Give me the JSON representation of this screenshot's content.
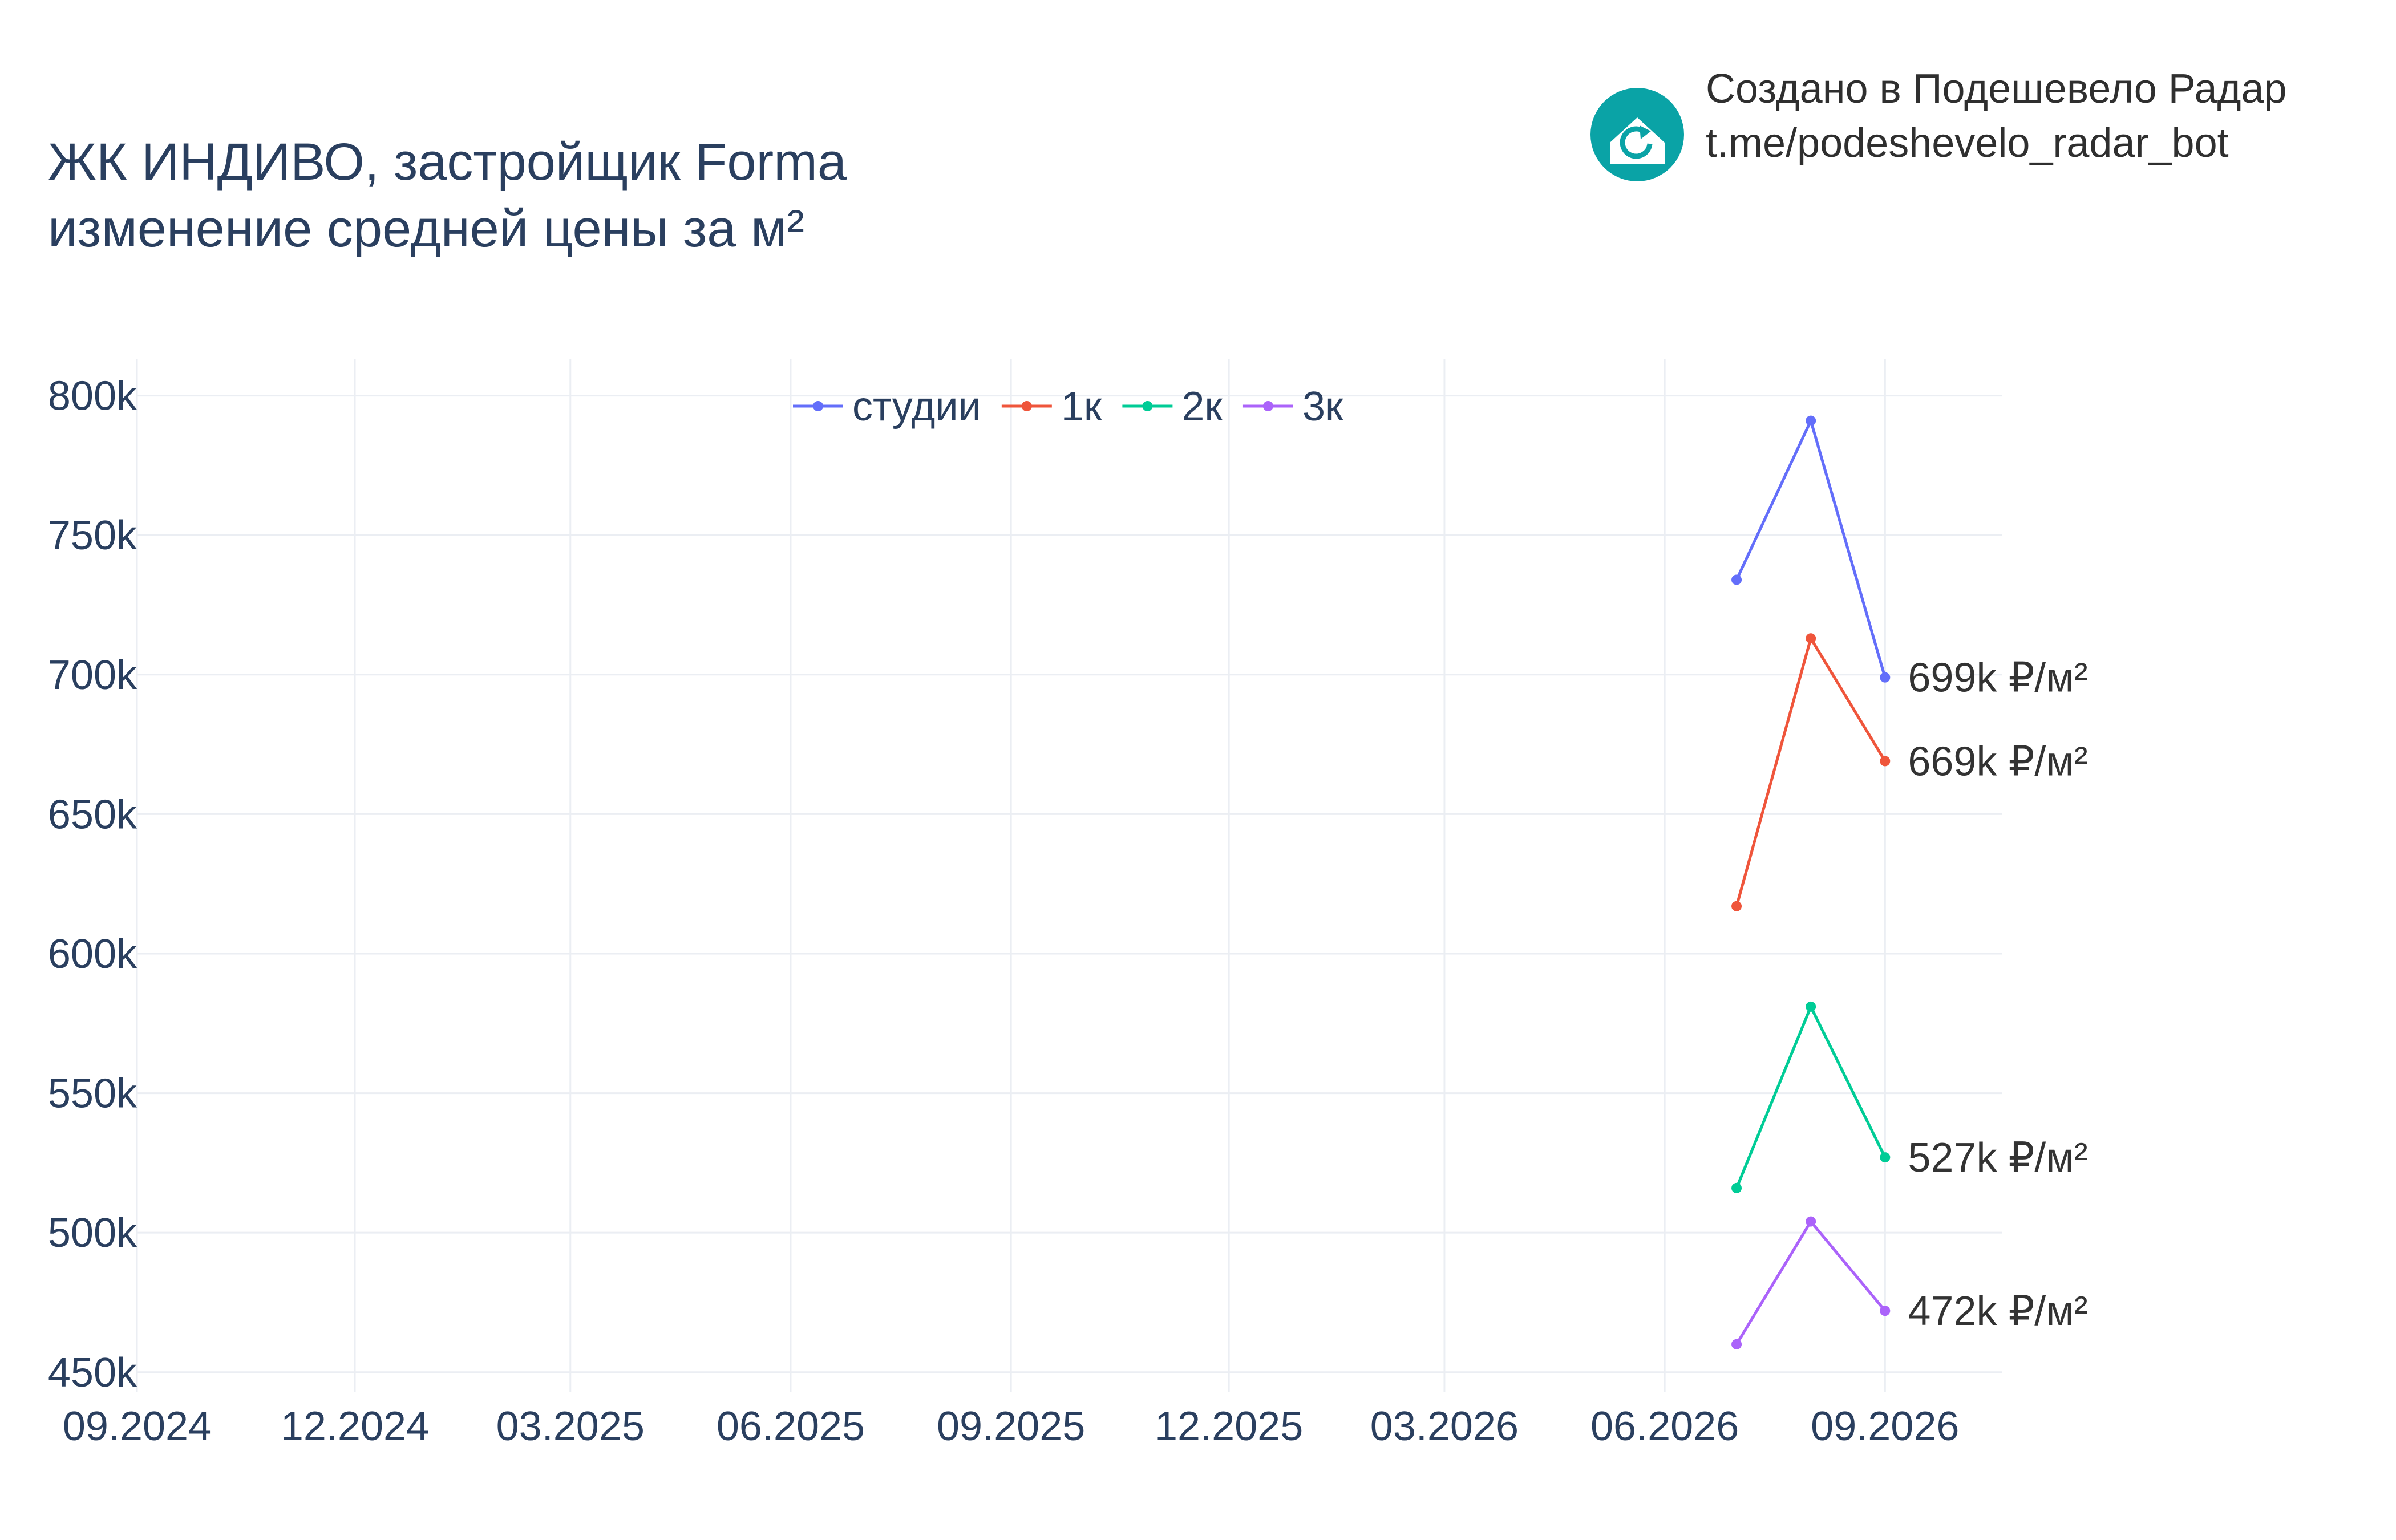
{
  "header": {
    "title_line1": "ЖК ИНДИВО, застройщик Forma",
    "title_line2": "изменение средней цены за м²"
  },
  "branding": {
    "line1": "Создано в Подешевело Радар",
    "line2": "t.me/podeshevelo_radar_bot",
    "icon": "house-refresh-icon",
    "icon_color": "#0aa3a6"
  },
  "chart_data": {
    "type": "line",
    "title": "ЖК ИНДИВО, застройщик Forma\nизменение средней цены за м²",
    "xlabel": "",
    "ylabel": "",
    "x_ticks": [
      "09.2024",
      "12.2024",
      "03.2025",
      "06.2025",
      "09.2025",
      "12.2025",
      "03.2026",
      "06.2026",
      "09.2026"
    ],
    "x_tick_dates": [
      "2024-09-01",
      "2024-12-01",
      "2025-03-01",
      "2025-06-01",
      "2025-09-01",
      "2025-12-01",
      "2026-03-01",
      "2026-06-01",
      "2026-09-01"
    ],
    "xlim": [
      "2024-09-01",
      "2026-10-20"
    ],
    "y_ticks": [
      450000,
      500000,
      550000,
      600000,
      650000,
      700000,
      750000,
      800000
    ],
    "y_tick_labels": [
      "450k",
      "500k",
      "550k",
      "600k",
      "650k",
      "700k",
      "750k",
      "800k"
    ],
    "ylim": [
      443000,
      813000
    ],
    "grid": true,
    "legend_position": "top-center",
    "series": [
      {
        "name": "студии",
        "color": "#636efa",
        "x": [
          "2026-07-01",
          "2026-08-01",
          "2026-09-01"
        ],
        "values": [
          734000,
          791000,
          699000
        ],
        "end_label": "699k ₽/м²"
      },
      {
        "name": "1к",
        "color": "#ef553b",
        "x": [
          "2026-07-01",
          "2026-08-01",
          "2026-09-01"
        ],
        "values": [
          617000,
          713000,
          669000
        ],
        "end_label": "669k ₽/м²"
      },
      {
        "name": "2к",
        "color": "#00cc96",
        "x": [
          "2026-07-01",
          "2026-08-01",
          "2026-09-01"
        ],
        "values": [
          516000,
          581000,
          527000
        ],
        "end_label": "527k ₽/м²"
      },
      {
        "name": "3к",
        "color": "#ab63fa",
        "x": [
          "2026-07-01",
          "2026-08-01",
          "2026-09-01"
        ],
        "values": [
          460000,
          504000,
          472000
        ],
        "end_label": "472k ₽/м²"
      }
    ]
  }
}
